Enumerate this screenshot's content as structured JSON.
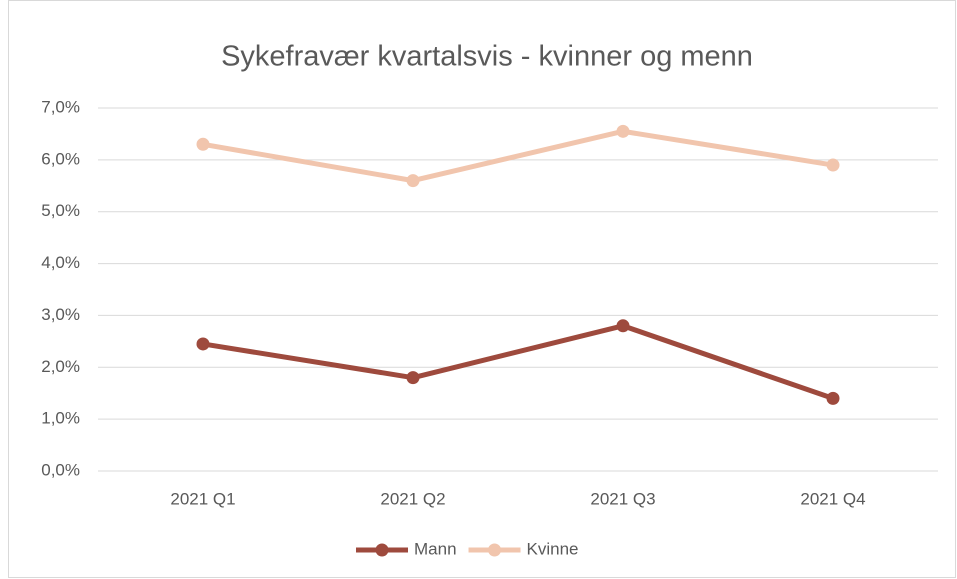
{
  "chart_data": {
    "type": "line",
    "title": "Sykefravær kvartalsvis - kvinner og menn",
    "categories": [
      "2021 Q1",
      "2021 Q2",
      "2021 Q3",
      "2021 Q4"
    ],
    "series": [
      {
        "name": "Mann",
        "color": "#9e4a3d",
        "values": [
          2.45,
          1.8,
          2.8,
          1.4
        ]
      },
      {
        "name": "Kvinne",
        "color": "#f1c5ad",
        "values": [
          6.3,
          5.6,
          6.55,
          5.9
        ]
      }
    ],
    "ylim": [
      0,
      7
    ],
    "yticks": [
      {
        "value": 0,
        "label": "0,0%"
      },
      {
        "value": 1,
        "label": "1,0%"
      },
      {
        "value": 2,
        "label": "2,0%"
      },
      {
        "value": 3,
        "label": "3,0%"
      },
      {
        "value": 4,
        "label": "4,0%"
      },
      {
        "value": 5,
        "label": "5,0%"
      },
      {
        "value": 6,
        "label": "6,0%"
      },
      {
        "value": 7,
        "label": "7,0%"
      }
    ],
    "grid": true,
    "legend": "bottom"
  }
}
